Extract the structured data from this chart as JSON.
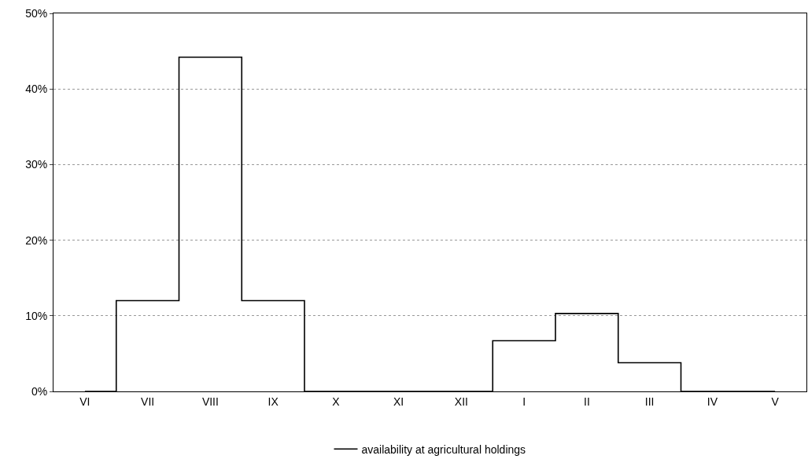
{
  "chart_data": {
    "type": "step",
    "categories": [
      "VI",
      "VII",
      "VIII",
      "IX",
      "X",
      "XI",
      "XII",
      "I",
      "II",
      "III",
      "IV",
      "V"
    ],
    "series": [
      {
        "name": "availability at agricultural holdings",
        "color": "#000000",
        "values": [
          0,
          12,
          44.2,
          12,
          0,
          0,
          0,
          6.7,
          10.3,
          3.8,
          0,
          0
        ]
      }
    ],
    "ylim": [
      0,
      50
    ],
    "yticks": [
      {
        "value": 0,
        "label": "0%"
      },
      {
        "value": 10,
        "label": "10%"
      },
      {
        "value": 20,
        "label": "20%"
      },
      {
        "value": 30,
        "label": "30%"
      },
      {
        "value": 40,
        "label": "40%"
      },
      {
        "value": 50,
        "label": "50%"
      }
    ],
    "grid": "y",
    "legend": "bottom",
    "line_style": "solid",
    "marker": "none"
  }
}
